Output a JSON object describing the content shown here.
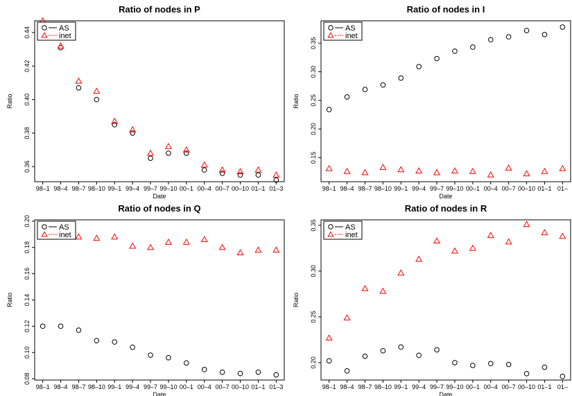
{
  "chart_data": [
    {
      "type": "scatter",
      "title": "Ratio of nodes in P",
      "xlabel": "Date",
      "ylabel": "Ratio",
      "categories": [
        "98–1",
        "98–4",
        "98–7",
        "98–10",
        "99–1",
        "99–4",
        "99–7",
        "99–10",
        "00–1",
        "00–4",
        "00–7",
        "00–10",
        "01–1",
        "01–3"
      ],
      "ylim": [
        0.351,
        0.447
      ],
      "yticks": [
        0.36,
        0.38,
        0.4,
        0.42,
        0.44
      ],
      "legend_position": "top-left",
      "series": [
        {
          "name": "AS",
          "marker": "circle",
          "color": "#000000",
          "values": [
            0.444,
            0.431,
            0.407,
            0.4,
            0.385,
            0.38,
            0.365,
            0.368,
            0.368,
            0.358,
            0.356,
            0.355,
            0.355,
            0.352
          ]
        },
        {
          "name": "inet",
          "marker": "triangle",
          "color": "#ff0000",
          "values": [
            0.447,
            0.432,
            0.411,
            0.405,
            0.387,
            0.382,
            0.368,
            0.372,
            0.37,
            0.361,
            0.358,
            0.357,
            0.358,
            0.355
          ]
        }
      ]
    },
    {
      "type": "scatter",
      "title": "Ratio of nodes in I",
      "xlabel": "Date",
      "ylabel": "Ratio",
      "categories": [
        "98–1",
        "98–4",
        "98–7",
        "98–10",
        "99–1",
        "99–4",
        "99–7",
        "99–10",
        "00–1",
        "00–4",
        "00–7",
        "00–10",
        "01–1",
        "01–"
      ],
      "ylim": [
        0.108,
        0.389
      ],
      "yticks": [
        0.15,
        0.2,
        0.25,
        0.3,
        0.35
      ],
      "legend_position": "top-left",
      "series": [
        {
          "name": "AS",
          "marker": "circle",
          "color": "#000000",
          "values": [
            0.234,
            0.256,
            0.269,
            0.277,
            0.289,
            0.309,
            0.323,
            0.336,
            0.343,
            0.356,
            0.361,
            0.372,
            0.365,
            0.378
          ]
        },
        {
          "name": "inet",
          "marker": "triangle",
          "color": "#ff0000",
          "values": [
            0.131,
            0.126,
            0.124,
            0.133,
            0.129,
            0.127,
            0.124,
            0.127,
            0.126,
            0.12,
            0.132,
            0.122,
            0.126,
            0.131
          ]
        }
      ]
    },
    {
      "type": "scatter",
      "title": "Ratio of nodes in Q",
      "xlabel": "Date",
      "ylabel": "Ratio",
      "categories": [
        "98–1",
        "98–4",
        "98–7",
        "98–10",
        "99–1",
        "99–4",
        "99–7",
        "99–10",
        "00–1",
        "00–4",
        "00–7",
        "00–10",
        "01–1",
        "01–3"
      ],
      "ylim": [
        0.079,
        0.201
      ],
      "yticks": [
        0.08,
        0.1,
        0.12,
        0.14,
        0.16,
        0.18,
        0.2
      ],
      "legend_position": "top-left",
      "series": [
        {
          "name": "AS",
          "marker": "circle",
          "color": "#000000",
          "values": [
            0.12,
            0.12,
            0.117,
            0.109,
            0.108,
            0.104,
            0.098,
            0.096,
            0.092,
            0.087,
            0.085,
            0.084,
            0.085,
            0.083
          ]
        },
        {
          "name": "inet",
          "marker": "triangle",
          "color": "#ff0000",
          "values": [
            0.197,
            0.197,
            0.188,
            0.187,
            0.188,
            0.181,
            0.18,
            0.184,
            0.184,
            0.186,
            0.18,
            0.176,
            0.178,
            0.178
          ]
        }
      ]
    },
    {
      "type": "scatter",
      "title": "Ratio of nodes in R",
      "xlabel": "Date",
      "ylabel": "Ratio",
      "categories": [
        "98–1",
        "98–4",
        "98–7",
        "98–10",
        "99–1",
        "99–4",
        "99–7",
        "99–10",
        "00–1",
        "00–4",
        "00–7",
        "00–10",
        "01–1",
        "01–"
      ],
      "ylim": [
        0.181,
        0.356
      ],
      "yticks": [
        0.2,
        0.25,
        0.3,
        0.35
      ],
      "legend_position": "top-left",
      "series": [
        {
          "name": "AS",
          "marker": "circle",
          "color": "#000000",
          "values": [
            0.202,
            0.191,
            0.207,
            0.213,
            0.217,
            0.208,
            0.214,
            0.2,
            0.197,
            0.199,
            0.198,
            0.188,
            0.195,
            0.185
          ]
        },
        {
          "name": "inet",
          "marker": "triangle",
          "color": "#ff0000",
          "values": [
            0.227,
            0.249,
            0.281,
            0.278,
            0.298,
            0.313,
            0.333,
            0.322,
            0.325,
            0.339,
            0.332,
            0.351,
            0.342,
            0.338
          ]
        }
      ]
    }
  ]
}
